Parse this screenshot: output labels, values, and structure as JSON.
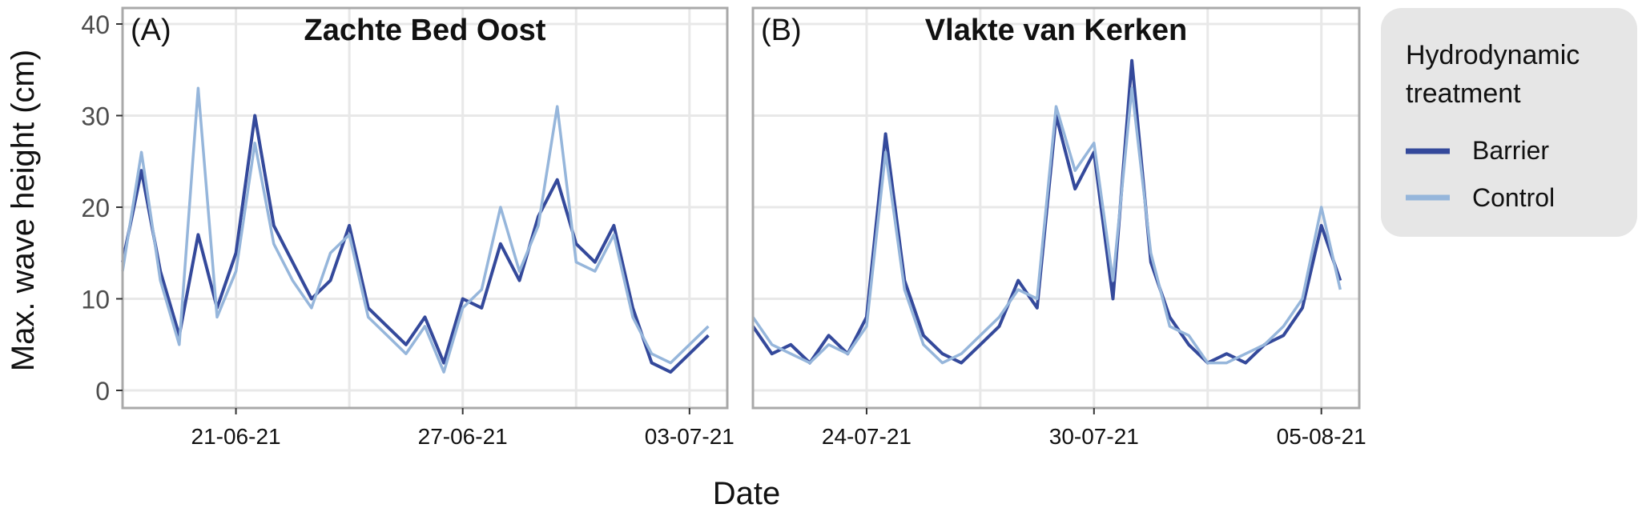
{
  "figure": {
    "ylabel": "Max. wave height (cm)",
    "xlabel": "Date"
  },
  "legend": {
    "title_line1": "Hydrodynamic",
    "title_line2": "treatment",
    "position": "right",
    "items": [
      {
        "label": "Barrier",
        "color": "#34499b"
      },
      {
        "label": "Control",
        "color": "#96b6db"
      }
    ]
  },
  "colors": {
    "panel_border": "#a9a9a9",
    "grid": "#e8e8e8",
    "legend_bg": "#e6e6e6",
    "barrier": "#34499b",
    "control": "#96b6db"
  },
  "chart_data": [
    {
      "type": "line",
      "panel_label": "(A)",
      "title": "Zachte Bed Oost",
      "xlabel": "Date",
      "ylabel": "Max. wave height (cm)",
      "x_tick_labels": [
        "21-06-21",
        "27-06-21",
        "03-07-21"
      ],
      "x_ticks": [
        "2021-06-21",
        "2021-06-27",
        "2021-07-03"
      ],
      "xlim": [
        "2021-06-18",
        "2021-07-04"
      ],
      "ylim": [
        0,
        40
      ],
      "y_ticks": [
        0,
        10,
        20,
        30,
        40
      ],
      "grid": true,
      "x": [
        "2021-06-18",
        "2021-06-18 12:00",
        "2021-06-19",
        "2021-06-19 12:00",
        "2021-06-20",
        "2021-06-20 12:00",
        "2021-06-21",
        "2021-06-21 12:00",
        "2021-06-22",
        "2021-06-22 12:00",
        "2021-06-23",
        "2021-06-23 12:00",
        "2021-06-24",
        "2021-06-24 12:00",
        "2021-06-25",
        "2021-06-25 12:00",
        "2021-06-26",
        "2021-06-26 12:00",
        "2021-06-27",
        "2021-06-27 12:00",
        "2021-06-28",
        "2021-06-28 12:00",
        "2021-06-29",
        "2021-06-29 12:00",
        "2021-06-30",
        "2021-06-30 12:00",
        "2021-07-01",
        "2021-07-01 12:00",
        "2021-07-02",
        "2021-07-02 12:00",
        "2021-07-03",
        "2021-07-03 12:00"
      ],
      "series": [
        {
          "name": "Barrier",
          "values": [
            14,
            24,
            13,
            6,
            17,
            9,
            15,
            30,
            18,
            14,
            10,
            12,
            18,
            9,
            7,
            5,
            8,
            3,
            10,
            9,
            16,
            12,
            19,
            23,
            16,
            14,
            18,
            9,
            3,
            2,
            4,
            6
          ]
        },
        {
          "name": "Control",
          "values": [
            13,
            26,
            12,
            5,
            33,
            8,
            13,
            27,
            16,
            12,
            9,
            15,
            17,
            8,
            6,
            4,
            7,
            2,
            9,
            11,
            20,
            13,
            18,
            31,
            14,
            13,
            17,
            8,
            4,
            3,
            5,
            7
          ]
        }
      ]
    },
    {
      "type": "line",
      "panel_label": "(B)",
      "title": "Vlakte van Kerken",
      "xlabel": "Date",
      "ylabel": "Max. wave height (cm)",
      "x_tick_labels": [
        "24-07-21",
        "30-07-21",
        "05-08-21"
      ],
      "x_ticks": [
        "2021-07-24",
        "2021-07-30",
        "2021-08-05"
      ],
      "xlim": [
        "2021-07-21",
        "2021-08-06"
      ],
      "ylim": [
        0,
        40
      ],
      "y_ticks": [
        0,
        10,
        20,
        30,
        40
      ],
      "grid": true,
      "x": [
        "2021-07-21",
        "2021-07-21 12:00",
        "2021-07-22",
        "2021-07-22 12:00",
        "2021-07-23",
        "2021-07-23 12:00",
        "2021-07-24",
        "2021-07-24 12:00",
        "2021-07-25",
        "2021-07-25 12:00",
        "2021-07-26",
        "2021-07-26 12:00",
        "2021-07-27",
        "2021-07-27 12:00",
        "2021-07-28",
        "2021-07-28 12:00",
        "2021-07-29",
        "2021-07-29 12:00",
        "2021-07-30",
        "2021-07-30 12:00",
        "2021-07-31",
        "2021-07-31 12:00",
        "2021-08-01",
        "2021-08-01 12:00",
        "2021-08-02",
        "2021-08-02 12:00",
        "2021-08-03",
        "2021-08-03 12:00",
        "2021-08-04",
        "2021-08-04 12:00",
        "2021-08-05",
        "2021-08-05 12:00"
      ],
      "series": [
        {
          "name": "Barrier",
          "values": [
            7,
            4,
            5,
            3,
            6,
            4,
            8,
            28,
            12,
            6,
            4,
            3,
            5,
            7,
            12,
            9,
            30,
            22,
            26,
            10,
            36,
            14,
            8,
            5,
            3,
            4,
            3,
            5,
            6,
            9,
            18,
            12
          ]
        },
        {
          "name": "Control",
          "values": [
            8,
            5,
            4,
            3,
            5,
            4,
            7,
            26,
            11,
            5,
            3,
            4,
            6,
            8,
            11,
            10,
            31,
            24,
            27,
            12,
            33,
            15,
            7,
            6,
            3,
            3,
            4,
            5,
            7,
            10,
            20,
            11
          ]
        }
      ]
    }
  ]
}
